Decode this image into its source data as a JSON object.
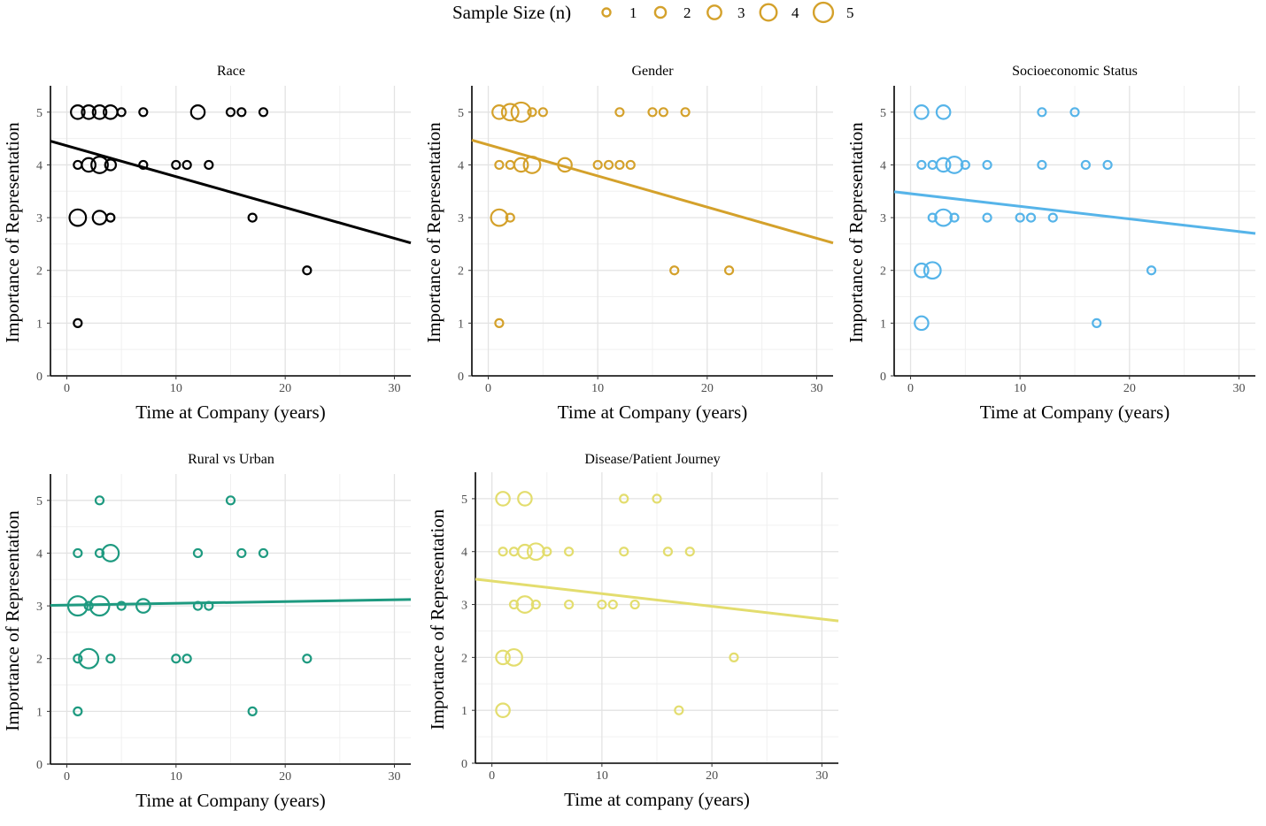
{
  "legend": {
    "title": "Sample Size (n)",
    "entries": [
      {
        "label": "1",
        "n": 1
      },
      {
        "label": "2",
        "n": 2
      },
      {
        "label": "3",
        "n": 3
      },
      {
        "label": "4",
        "n": 4
      },
      {
        "label": "5",
        "n": 5
      }
    ],
    "color": "#D4A12B",
    "placement": "top"
  },
  "chart_data": [
    {
      "type": "scatter",
      "title": "Race",
      "xlabel": "Time at Company (years)",
      "ylabel": "Importance of Representation",
      "color": "#000000",
      "xlim": [
        -1.5,
        31.5
      ],
      "ylim": [
        0,
        5.5
      ],
      "xticks": [
        0,
        10,
        20,
        30
      ],
      "yticks": [
        0,
        1,
        2,
        3,
        4,
        5
      ],
      "grid": true,
      "trend": [
        [
          -1.5,
          4.45
        ],
        [
          31.5,
          2.52
        ]
      ],
      "points": [
        {
          "x": 1,
          "y": 5,
          "n": 3
        },
        {
          "x": 2,
          "y": 5,
          "n": 3
        },
        {
          "x": 3,
          "y": 5,
          "n": 3
        },
        {
          "x": 4,
          "y": 5,
          "n": 3
        },
        {
          "x": 5,
          "y": 5,
          "n": 1
        },
        {
          "x": 7,
          "y": 5,
          "n": 1
        },
        {
          "x": 12,
          "y": 5,
          "n": 3
        },
        {
          "x": 15,
          "y": 5,
          "n": 1
        },
        {
          "x": 16,
          "y": 5,
          "n": 1
        },
        {
          "x": 18,
          "y": 5,
          "n": 1
        },
        {
          "x": 1,
          "y": 4,
          "n": 1
        },
        {
          "x": 2,
          "y": 4,
          "n": 3
        },
        {
          "x": 3,
          "y": 4,
          "n": 4
        },
        {
          "x": 4,
          "y": 4,
          "n": 2
        },
        {
          "x": 7,
          "y": 4,
          "n": 1
        },
        {
          "x": 10,
          "y": 4,
          "n": 1
        },
        {
          "x": 11,
          "y": 4,
          "n": 1
        },
        {
          "x": 13,
          "y": 4,
          "n": 1
        },
        {
          "x": 1,
          "y": 3,
          "n": 4
        },
        {
          "x": 3,
          "y": 3,
          "n": 3
        },
        {
          "x": 4,
          "y": 3,
          "n": 1
        },
        {
          "x": 17,
          "y": 3,
          "n": 1
        },
        {
          "x": 22,
          "y": 2,
          "n": 1
        },
        {
          "x": 1,
          "y": 1,
          "n": 1
        }
      ]
    },
    {
      "type": "scatter",
      "title": "Gender",
      "xlabel": "Time at Company (years)",
      "ylabel": "Importance of Representation",
      "color": "#D4A12B",
      "xlim": [
        -1.5,
        31.5
      ],
      "ylim": [
        0,
        5.5
      ],
      "xticks": [
        0,
        10,
        20,
        30
      ],
      "yticks": [
        0,
        1,
        2,
        3,
        4,
        5
      ],
      "grid": true,
      "trend": [
        [
          -1.5,
          4.47
        ],
        [
          31.5,
          2.52
        ]
      ],
      "points": [
        {
          "x": 1,
          "y": 5,
          "n": 3
        },
        {
          "x": 2,
          "y": 5,
          "n": 4
        },
        {
          "x": 3,
          "y": 5,
          "n": 5
        },
        {
          "x": 4,
          "y": 5,
          "n": 1
        },
        {
          "x": 5,
          "y": 5,
          "n": 1
        },
        {
          "x": 12,
          "y": 5,
          "n": 1
        },
        {
          "x": 15,
          "y": 5,
          "n": 1
        },
        {
          "x": 16,
          "y": 5,
          "n": 1
        },
        {
          "x": 18,
          "y": 5,
          "n": 1
        },
        {
          "x": 1,
          "y": 4,
          "n": 1
        },
        {
          "x": 2,
          "y": 4,
          "n": 1
        },
        {
          "x": 3,
          "y": 4,
          "n": 3
        },
        {
          "x": 4,
          "y": 4,
          "n": 4
        },
        {
          "x": 7,
          "y": 4,
          "n": 3
        },
        {
          "x": 10,
          "y": 4,
          "n": 1
        },
        {
          "x": 11,
          "y": 4,
          "n": 1
        },
        {
          "x": 12,
          "y": 4,
          "n": 1
        },
        {
          "x": 13,
          "y": 4,
          "n": 1
        },
        {
          "x": 1,
          "y": 3,
          "n": 4
        },
        {
          "x": 2,
          "y": 3,
          "n": 1
        },
        {
          "x": 17,
          "y": 2,
          "n": 1
        },
        {
          "x": 22,
          "y": 2,
          "n": 1
        },
        {
          "x": 1,
          "y": 1,
          "n": 1
        }
      ]
    },
    {
      "type": "scatter",
      "title": "Socioeconomic Status",
      "xlabel": "Time at Company (years)",
      "ylabel": "Importance of Representation",
      "color": "#56B4E9",
      "xlim": [
        -1.5,
        31.5
      ],
      "ylim": [
        0,
        5.5
      ],
      "xticks": [
        0,
        10,
        20,
        30
      ],
      "yticks": [
        0,
        1,
        2,
        3,
        4,
        5
      ],
      "grid": true,
      "trend": [
        [
          -1.5,
          3.49
        ],
        [
          31.5,
          2.7
        ]
      ],
      "points": [
        {
          "x": 1,
          "y": 5,
          "n": 3
        },
        {
          "x": 3,
          "y": 5,
          "n": 3
        },
        {
          "x": 12,
          "y": 5,
          "n": 1
        },
        {
          "x": 15,
          "y": 5,
          "n": 1
        },
        {
          "x": 1,
          "y": 4,
          "n": 1
        },
        {
          "x": 2,
          "y": 4,
          "n": 1
        },
        {
          "x": 3,
          "y": 4,
          "n": 3
        },
        {
          "x": 4,
          "y": 4,
          "n": 4
        },
        {
          "x": 5,
          "y": 4,
          "n": 1
        },
        {
          "x": 7,
          "y": 4,
          "n": 1
        },
        {
          "x": 12,
          "y": 4,
          "n": 1
        },
        {
          "x": 16,
          "y": 4,
          "n": 1
        },
        {
          "x": 18,
          "y": 4,
          "n": 1
        },
        {
          "x": 2,
          "y": 3,
          "n": 1
        },
        {
          "x": 3,
          "y": 3,
          "n": 4
        },
        {
          "x": 4,
          "y": 3,
          "n": 1
        },
        {
          "x": 7,
          "y": 3,
          "n": 1
        },
        {
          "x": 10,
          "y": 3,
          "n": 1
        },
        {
          "x": 11,
          "y": 3,
          "n": 1
        },
        {
          "x": 13,
          "y": 3,
          "n": 1
        },
        {
          "x": 1,
          "y": 2,
          "n": 3
        },
        {
          "x": 2,
          "y": 2,
          "n": 4
        },
        {
          "x": 22,
          "y": 2,
          "n": 1
        },
        {
          "x": 1,
          "y": 1,
          "n": 3
        },
        {
          "x": 17,
          "y": 1,
          "n": 1
        }
      ]
    },
    {
      "type": "scatter",
      "title": "Rural vs Urban",
      "xlabel": "Time at Company (years)",
      "ylabel": "Importance of Representation",
      "color": "#1E9A80",
      "xlim": [
        -1.5,
        31.5
      ],
      "ylim": [
        0,
        5.5
      ],
      "xticks": [
        0,
        10,
        20,
        30
      ],
      "yticks": [
        0,
        1,
        2,
        3,
        4,
        5
      ],
      "grid": true,
      "trend": [
        [
          -1.5,
          3.01
        ],
        [
          31.5,
          3.12
        ]
      ],
      "points": [
        {
          "x": 3,
          "y": 5,
          "n": 1
        },
        {
          "x": 15,
          "y": 5,
          "n": 1
        },
        {
          "x": 1,
          "y": 4,
          "n": 1
        },
        {
          "x": 3,
          "y": 4,
          "n": 1
        },
        {
          "x": 4,
          "y": 4,
          "n": 4
        },
        {
          "x": 12,
          "y": 4,
          "n": 1
        },
        {
          "x": 16,
          "y": 4,
          "n": 1
        },
        {
          "x": 18,
          "y": 4,
          "n": 1
        },
        {
          "x": 1,
          "y": 3,
          "n": 5
        },
        {
          "x": 2,
          "y": 3,
          "n": 1
        },
        {
          "x": 3,
          "y": 3,
          "n": 5
        },
        {
          "x": 5,
          "y": 3,
          "n": 1
        },
        {
          "x": 7,
          "y": 3,
          "n": 3
        },
        {
          "x": 12,
          "y": 3,
          "n": 1
        },
        {
          "x": 13,
          "y": 3,
          "n": 1
        },
        {
          "x": 1,
          "y": 2,
          "n": 1
        },
        {
          "x": 2,
          "y": 2,
          "n": 5
        },
        {
          "x": 4,
          "y": 2,
          "n": 1
        },
        {
          "x": 10,
          "y": 2,
          "n": 1
        },
        {
          "x": 11,
          "y": 2,
          "n": 1
        },
        {
          "x": 22,
          "y": 2,
          "n": 1
        },
        {
          "x": 1,
          "y": 1,
          "n": 1
        },
        {
          "x": 17,
          "y": 1,
          "n": 1
        }
      ]
    },
    {
      "type": "scatter",
      "title": "Disease/Patient Journey",
      "xlabel": "Time at company (years)",
      "ylabel": "Importance of Representation",
      "color": "#E3DD6E",
      "xlim": [
        -1.5,
        31.5
      ],
      "ylim": [
        0,
        5.5
      ],
      "xticks": [
        0,
        10,
        20,
        30
      ],
      "yticks": [
        0,
        1,
        2,
        3,
        4,
        5
      ],
      "grid": true,
      "trend": [
        [
          -1.5,
          3.48
        ],
        [
          31.5,
          2.69
        ]
      ],
      "points": [
        {
          "x": 1,
          "y": 5,
          "n": 3
        },
        {
          "x": 3,
          "y": 5,
          "n": 3
        },
        {
          "x": 12,
          "y": 5,
          "n": 1
        },
        {
          "x": 15,
          "y": 5,
          "n": 1
        },
        {
          "x": 1,
          "y": 4,
          "n": 1
        },
        {
          "x": 2,
          "y": 4,
          "n": 1
        },
        {
          "x": 3,
          "y": 4,
          "n": 3
        },
        {
          "x": 4,
          "y": 4,
          "n": 4
        },
        {
          "x": 5,
          "y": 4,
          "n": 1
        },
        {
          "x": 7,
          "y": 4,
          "n": 1
        },
        {
          "x": 12,
          "y": 4,
          "n": 1
        },
        {
          "x": 16,
          "y": 4,
          "n": 1
        },
        {
          "x": 18,
          "y": 4,
          "n": 1
        },
        {
          "x": 2,
          "y": 3,
          "n": 1
        },
        {
          "x": 3,
          "y": 3,
          "n": 4
        },
        {
          "x": 4,
          "y": 3,
          "n": 1
        },
        {
          "x": 7,
          "y": 3,
          "n": 1
        },
        {
          "x": 10,
          "y": 3,
          "n": 1
        },
        {
          "x": 11,
          "y": 3,
          "n": 1
        },
        {
          "x": 13,
          "y": 3,
          "n": 1
        },
        {
          "x": 1,
          "y": 2,
          "n": 3
        },
        {
          "x": 2,
          "y": 2,
          "n": 4
        },
        {
          "x": 22,
          "y": 2,
          "n": 1
        },
        {
          "x": 1,
          "y": 1,
          "n": 3
        },
        {
          "x": 17,
          "y": 1,
          "n": 1
        }
      ]
    }
  ]
}
